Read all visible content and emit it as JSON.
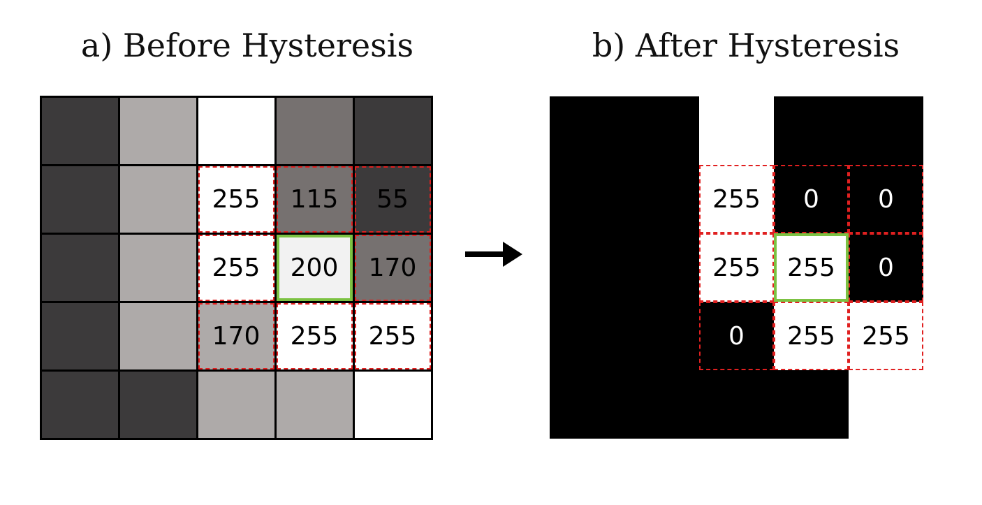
{
  "titles": {
    "before": "a) Before Hysteresis",
    "after": "b) After Hysteresis"
  },
  "grid_before": [
    [
      {
        "fill": "#3c3a3b",
        "text": ""
      },
      {
        "fill": "#aeaaa9",
        "text": ""
      },
      {
        "fill": "#ffffff",
        "text": ""
      },
      {
        "fill": "#767170",
        "text": ""
      },
      {
        "fill": "#3c3a3b",
        "text": ""
      }
    ],
    [
      {
        "fill": "#3c3a3b",
        "text": ""
      },
      {
        "fill": "#aeaaa9",
        "text": ""
      },
      {
        "fill": "#ffffff",
        "text": "255",
        "color": "#000000"
      },
      {
        "fill": "#767170",
        "text": "115",
        "color": "#000000"
      },
      {
        "fill": "#3c3a3b",
        "text": "55",
        "color": "#000000"
      }
    ],
    [
      {
        "fill": "#3c3a3b",
        "text": ""
      },
      {
        "fill": "#aeaaa9",
        "text": ""
      },
      {
        "fill": "#ffffff",
        "text": "255",
        "color": "#000000"
      },
      {
        "fill": "#f2f2f2",
        "text": "200",
        "color": "#000000"
      },
      {
        "fill": "#767170",
        "text": "170",
        "color": "#000000"
      }
    ],
    [
      {
        "fill": "#3c3a3b",
        "text": ""
      },
      {
        "fill": "#aeaaa9",
        "text": ""
      },
      {
        "fill": "#aeaaa9",
        "text": "170",
        "color": "#000000"
      },
      {
        "fill": "#ffffff",
        "text": "255",
        "color": "#000000"
      },
      {
        "fill": "#ffffff",
        "text": "255",
        "color": "#000000"
      }
    ],
    [
      {
        "fill": "#3c3a3b",
        "text": ""
      },
      {
        "fill": "#3c3a3b",
        "text": ""
      },
      {
        "fill": "#aeaaa9",
        "text": ""
      },
      {
        "fill": "#aeaaa9",
        "text": ""
      },
      {
        "fill": "#ffffff",
        "text": ""
      }
    ]
  ],
  "grid_after": [
    [
      {
        "fill": "#000000",
        "text": ""
      },
      {
        "fill": "#000000",
        "text": ""
      },
      {
        "fill": "#ffffff",
        "text": ""
      },
      {
        "fill": "#000000",
        "text": ""
      },
      {
        "fill": "#000000",
        "text": ""
      }
    ],
    [
      {
        "fill": "#000000",
        "text": ""
      },
      {
        "fill": "#000000",
        "text": ""
      },
      {
        "fill": "#ffffff",
        "text": "255",
        "color": "#000000"
      },
      {
        "fill": "#000000",
        "text": "0",
        "color": "#ffffff"
      },
      {
        "fill": "#000000",
        "text": "0",
        "color": "#ffffff"
      }
    ],
    [
      {
        "fill": "#000000",
        "text": ""
      },
      {
        "fill": "#000000",
        "text": ""
      },
      {
        "fill": "#ffffff",
        "text": "255",
        "color": "#000000"
      },
      {
        "fill": "#ffffff",
        "text": "255",
        "color": "#000000"
      },
      {
        "fill": "#000000",
        "text": "0",
        "color": "#ffffff"
      }
    ],
    [
      {
        "fill": "#000000",
        "text": ""
      },
      {
        "fill": "#000000",
        "text": ""
      },
      {
        "fill": "#000000",
        "text": "0",
        "color": "#ffffff"
      },
      {
        "fill": "#ffffff",
        "text": "255",
        "color": "#000000"
      },
      {
        "fill": "#ffffff",
        "text": "255",
        "color": "#000000"
      }
    ],
    [
      {
        "fill": "#000000",
        "text": ""
      },
      {
        "fill": "#000000",
        "text": ""
      },
      {
        "fill": "#000000",
        "text": ""
      },
      {
        "fill": "#000000",
        "text": ""
      },
      {
        "fill": "#ffffff",
        "text": ""
      }
    ]
  ],
  "neighborhood": {
    "rows": [
      1,
      2,
      3
    ],
    "cols": [
      2,
      3,
      4
    ],
    "center": [
      2,
      3
    ],
    "dash_color": "#e02020",
    "center_color": "#7cc242"
  },
  "arrow_icon": "right-arrow-icon"
}
